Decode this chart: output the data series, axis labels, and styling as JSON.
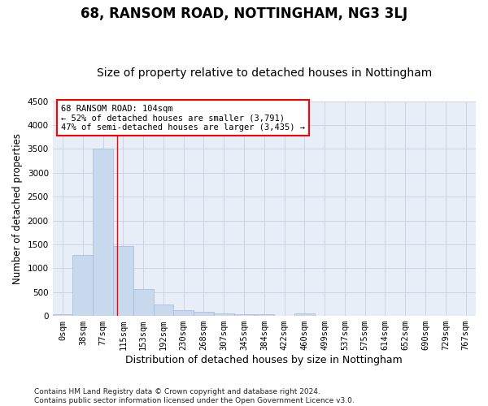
{
  "title": "68, RANSOM ROAD, NOTTINGHAM, NG3 3LJ",
  "subtitle": "Size of property relative to detached houses in Nottingham",
  "xlabel": "Distribution of detached houses by size in Nottingham",
  "ylabel": "Number of detached properties",
  "bar_labels": [
    "0sqm",
    "38sqm",
    "77sqm",
    "115sqm",
    "153sqm",
    "192sqm",
    "230sqm",
    "268sqm",
    "307sqm",
    "345sqm",
    "384sqm",
    "422sqm",
    "460sqm",
    "499sqm",
    "537sqm",
    "575sqm",
    "614sqm",
    "652sqm",
    "690sqm",
    "729sqm",
    "767sqm"
  ],
  "bar_values": [
    40,
    1280,
    3510,
    1460,
    570,
    240,
    120,
    80,
    55,
    40,
    30,
    0,
    60,
    0,
    0,
    0,
    0,
    0,
    0,
    0,
    0
  ],
  "bar_color": "#c9d9ed",
  "bar_edge_color": "#a0b8d8",
  "grid_color": "#c8d0e0",
  "background_color": "#e8eef8",
  "annotation_box_text": "68 RANSOM ROAD: 104sqm\n← 52% of detached houses are smaller (3,791)\n47% of semi-detached houses are larger (3,435) →",
  "annotation_box_color": "red",
  "vline_position": 2.71,
  "ylim": [
    0,
    4500
  ],
  "yticks": [
    0,
    500,
    1000,
    1500,
    2000,
    2500,
    3000,
    3500,
    4000,
    4500
  ],
  "footnote": "Contains HM Land Registry data © Crown copyright and database right 2024.\nContains public sector information licensed under the Open Government Licence v3.0.",
  "title_fontsize": 12,
  "subtitle_fontsize": 10,
  "xlabel_fontsize": 9,
  "ylabel_fontsize": 8.5,
  "tick_fontsize": 7.5,
  "annot_fontsize": 7.5
}
